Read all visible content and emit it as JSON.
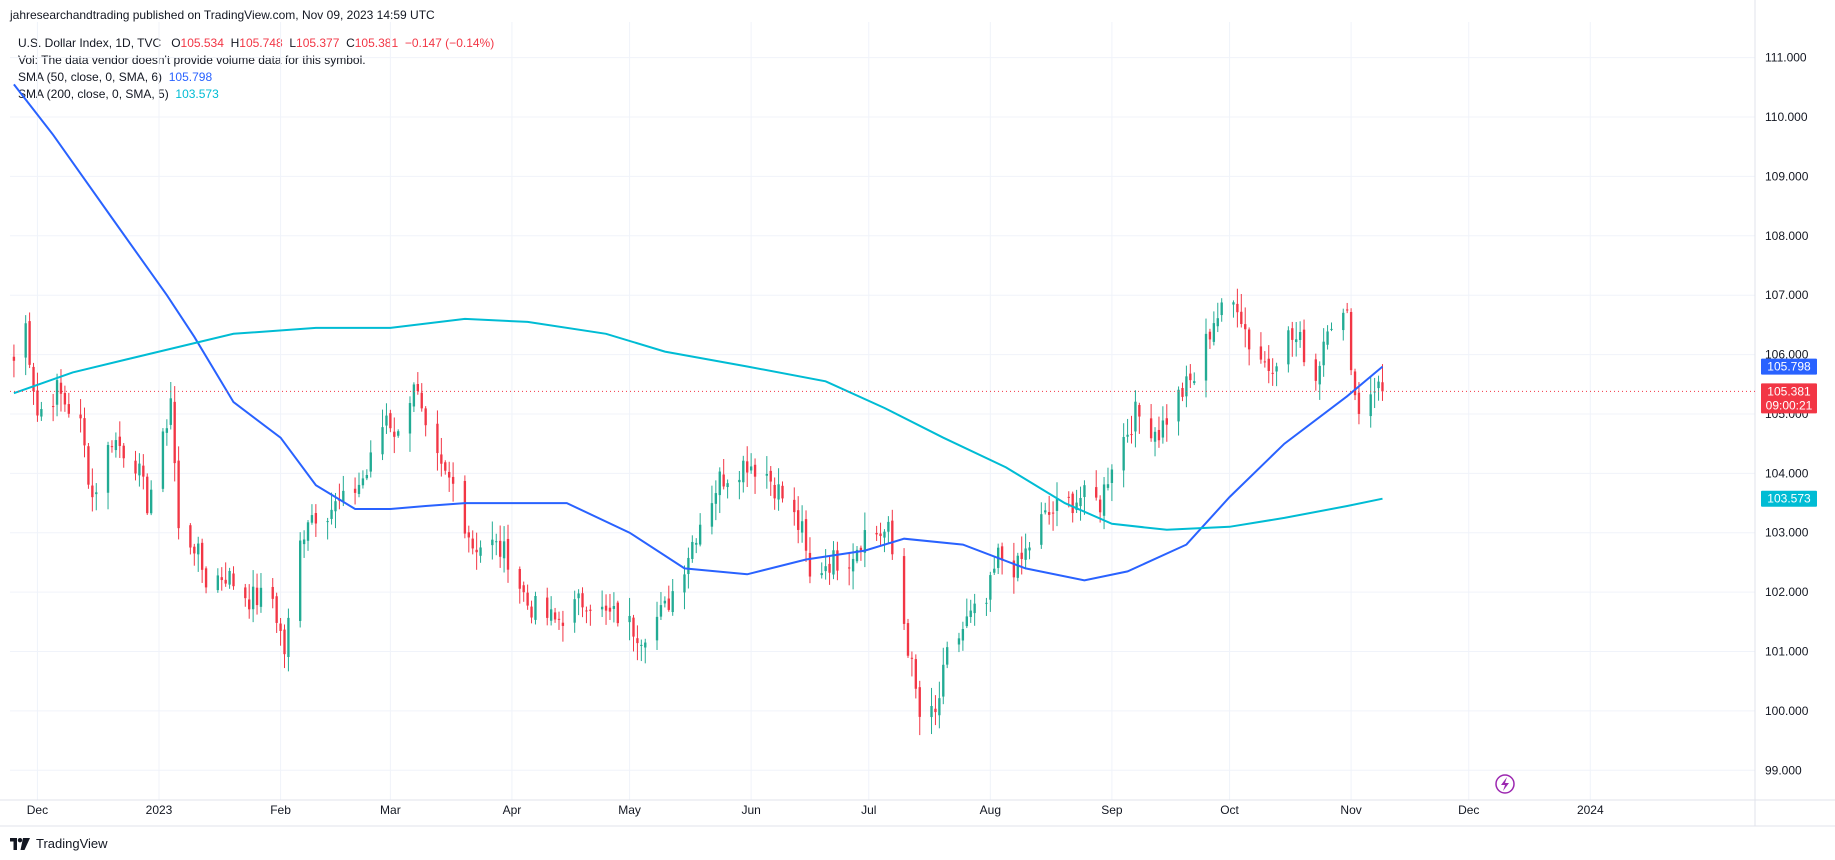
{
  "header": {
    "published": "jahresearchandtrading published on TradingView.com, Nov 09, 2023 14:59 UTC"
  },
  "legend": {
    "symbol": "U.S. Dollar Index, 1D, TVC",
    "o_label": "O",
    "o_value": "105.534",
    "h_label": "H",
    "h_value": "105.748",
    "l_label": "L",
    "l_value": "105.377",
    "c_label": "C",
    "c_value": "105.381",
    "change": "−0.147 (−0.14%)",
    "vol_note": "Vol: The data vendor doesn't provide volume data for this symbol.",
    "sma50_label": "SMA (50, close, 0, SMA, 6)",
    "sma50_value": "105.798",
    "sma200_label": "SMA (200, close, 0, SMA, 5)",
    "sma200_value": "103.573"
  },
  "footer": {
    "brand": "TradingView"
  },
  "price_labels": {
    "sma50": "105.798",
    "last": "105.381",
    "countdown": "09:00:21",
    "sma200": "103.573"
  },
  "colors": {
    "up": "#22ab94",
    "down": "#f23645",
    "sma50": "#2962ff",
    "sma200": "#00bcd4",
    "grid": "#f0f3fa",
    "text": "#131722"
  },
  "chart_data": {
    "type": "candlestick",
    "title": "U.S. Dollar Index, 1D, TVC",
    "x_ticks": [
      "Dec",
      "2023",
      "Feb",
      "Mar",
      "Apr",
      "May",
      "Jun",
      "Jul",
      "Aug",
      "Sep",
      "Oct",
      "Nov",
      "Dec",
      "2024"
    ],
    "x_tick_dates": [
      "2022-12-01",
      "2023-01-01",
      "2023-02-01",
      "2023-03-01",
      "2023-04-01",
      "2023-05-01",
      "2023-06-01",
      "2023-07-01",
      "2023-08-01",
      "2023-09-01",
      "2023-10-01",
      "2023-11-01",
      "2023-12-01",
      "2024-01-01"
    ],
    "y_ticks": [
      "99.000",
      "100.000",
      "101.000",
      "102.000",
      "103.000",
      "104.000",
      "105.000",
      "106.000",
      "107.000",
      "108.000",
      "109.000",
      "110.000",
      "111.000"
    ],
    "ylim": [
      98.5,
      111.6
    ],
    "last_close": 105.381,
    "close_path": [
      [
        "2022-11-25",
        105.9
      ],
      [
        "2022-11-28",
        106.5
      ],
      [
        "2022-12-01",
        105.0
      ],
      [
        "2022-12-06",
        105.4
      ],
      [
        "2022-12-12",
        104.8
      ],
      [
        "2022-12-15",
        103.6
      ],
      [
        "2022-12-20",
        104.6
      ],
      [
        "2022-12-26",
        104.2
      ],
      [
        "2022-12-29",
        103.5
      ],
      [
        "2023-01-02",
        104.5
      ],
      [
        "2023-01-04",
        105.3
      ],
      [
        "2023-01-06",
        103.0
      ],
      [
        "2023-01-10",
        102.8
      ],
      [
        "2023-01-13",
        102.2
      ],
      [
        "2023-01-18",
        102.3
      ],
      [
        "2023-01-24",
        101.9
      ],
      [
        "2023-01-30",
        101.9
      ],
      [
        "2023-02-02",
        101.0
      ],
      [
        "2023-02-06",
        102.8
      ],
      [
        "2023-02-08",
        103.3
      ],
      [
        "2023-02-13",
        103.4
      ],
      [
        "2023-02-17",
        103.5
      ],
      [
        "2023-02-23",
        104.0
      ],
      [
        "2023-02-28",
        105.0
      ],
      [
        "2023-03-03",
        104.6
      ],
      [
        "2023-03-07",
        105.6
      ],
      [
        "2023-03-10",
        104.6
      ],
      [
        "2023-03-14",
        104.0
      ],
      [
        "2023-03-17",
        103.8
      ],
      [
        "2023-03-22",
        102.8
      ],
      [
        "2023-03-27",
        102.8
      ],
      [
        "2023-03-31",
        102.6
      ],
      [
        "2023-04-05",
        101.8
      ],
      [
        "2023-04-12",
        101.5
      ],
      [
        "2023-04-14",
        101.6
      ],
      [
        "2023-04-20",
        101.9
      ],
      [
        "2023-04-25",
        101.6
      ],
      [
        "2023-04-28",
        101.6
      ],
      [
        "2023-05-04",
        101.3
      ],
      [
        "2023-05-10",
        101.7
      ],
      [
        "2023-05-15",
        102.5
      ],
      [
        "2023-05-19",
        103.2
      ],
      [
        "2023-05-24",
        103.9
      ],
      [
        "2023-05-31",
        104.2
      ],
      [
        "2023-06-05",
        104.0
      ],
      [
        "2023-06-09",
        103.6
      ],
      [
        "2023-06-14",
        103.0
      ],
      [
        "2023-06-16",
        102.2
      ],
      [
        "2023-06-20",
        102.5
      ],
      [
        "2023-06-26",
        102.6
      ],
      [
        "2023-06-30",
        103.0
      ],
      [
        "2023-07-06",
        103.0
      ],
      [
        "2023-07-10",
        101.5
      ],
      [
        "2023-07-14",
        99.9
      ],
      [
        "2023-07-18",
        99.9
      ],
      [
        "2023-07-21",
        100.9
      ],
      [
        "2023-07-26",
        101.5
      ],
      [
        "2023-07-31",
        101.8
      ],
      [
        "2023-08-03",
        102.6
      ],
      [
        "2023-08-08",
        102.4
      ],
      [
        "2023-08-14",
        103.2
      ],
      [
        "2023-08-18",
        103.4
      ],
      [
        "2023-08-24",
        103.6
      ],
      [
        "2023-08-29",
        103.5
      ],
      [
        "2023-09-01",
        104.2
      ],
      [
        "2023-09-07",
        105.0
      ],
      [
        "2023-09-13",
        104.7
      ],
      [
        "2023-09-18",
        105.3
      ],
      [
        "2023-09-22",
        105.6
      ],
      [
        "2023-09-27",
        106.6
      ],
      [
        "2023-10-03",
        106.9
      ],
      [
        "2023-10-06",
        106.2
      ],
      [
        "2023-10-11",
        105.8
      ],
      [
        "2023-10-16",
        106.3
      ],
      [
        "2023-10-19",
        106.2
      ],
      [
        "2023-10-23",
        105.6
      ],
      [
        "2023-10-26",
        106.6
      ],
      [
        "2023-10-31",
        106.6
      ],
      [
        "2023-11-02",
        105.3
      ],
      [
        "2023-11-03",
        105.1
      ],
      [
        "2023-11-07",
        105.5
      ],
      [
        "2023-11-09",
        105.381
      ]
    ],
    "series": [
      {
        "name": "SMA (50, close, 0, SMA, 6)",
        "color": "#2962ff",
        "points": [
          [
            "2022-11-25",
            110.55
          ],
          [
            "2022-12-05",
            109.7
          ],
          [
            "2022-12-20",
            108.3
          ],
          [
            "2023-01-03",
            107.0
          ],
          [
            "2023-01-10",
            106.3
          ],
          [
            "2023-01-20",
            105.2
          ],
          [
            "2023-02-01",
            104.6
          ],
          [
            "2023-02-10",
            103.8
          ],
          [
            "2023-02-20",
            103.4
          ],
          [
            "2023-03-01",
            103.4
          ],
          [
            "2023-03-10",
            103.45
          ],
          [
            "2023-03-20",
            103.5
          ],
          [
            "2023-04-01",
            103.5
          ],
          [
            "2023-04-15",
            103.5
          ],
          [
            "2023-05-01",
            103.0
          ],
          [
            "2023-05-15",
            102.4
          ],
          [
            "2023-05-31",
            102.3
          ],
          [
            "2023-06-15",
            102.55
          ],
          [
            "2023-06-30",
            102.7
          ],
          [
            "2023-07-10",
            102.9
          ],
          [
            "2023-07-25",
            102.8
          ],
          [
            "2023-08-10",
            102.4
          ],
          [
            "2023-08-25",
            102.2
          ],
          [
            "2023-09-05",
            102.35
          ],
          [
            "2023-09-20",
            102.8
          ],
          [
            "2023-10-01",
            103.6
          ],
          [
            "2023-10-15",
            104.5
          ],
          [
            "2023-10-31",
            105.3
          ],
          [
            "2023-11-09",
            105.798
          ]
        ]
      },
      {
        "name": "SMA (200, close, 0, SMA, 5)",
        "color": "#00bcd4",
        "points": [
          [
            "2022-11-25",
            105.35
          ],
          [
            "2022-12-10",
            105.7
          ],
          [
            "2023-01-01",
            106.05
          ],
          [
            "2023-01-20",
            106.35
          ],
          [
            "2023-02-10",
            106.45
          ],
          [
            "2023-03-01",
            106.45
          ],
          [
            "2023-03-20",
            106.6
          ],
          [
            "2023-04-05",
            106.55
          ],
          [
            "2023-04-25",
            106.35
          ],
          [
            "2023-05-10",
            106.05
          ],
          [
            "2023-05-31",
            105.8
          ],
          [
            "2023-06-20",
            105.55
          ],
          [
            "2023-07-05",
            105.1
          ],
          [
            "2023-07-20",
            104.6
          ],
          [
            "2023-08-05",
            104.1
          ],
          [
            "2023-08-20",
            103.5
          ],
          [
            "2023-09-01",
            103.15
          ],
          [
            "2023-09-15",
            103.05
          ],
          [
            "2023-10-01",
            103.1
          ],
          [
            "2023-10-15",
            103.25
          ],
          [
            "2023-10-31",
            103.45
          ],
          [
            "2023-11-09",
            103.573
          ]
        ]
      }
    ]
  }
}
